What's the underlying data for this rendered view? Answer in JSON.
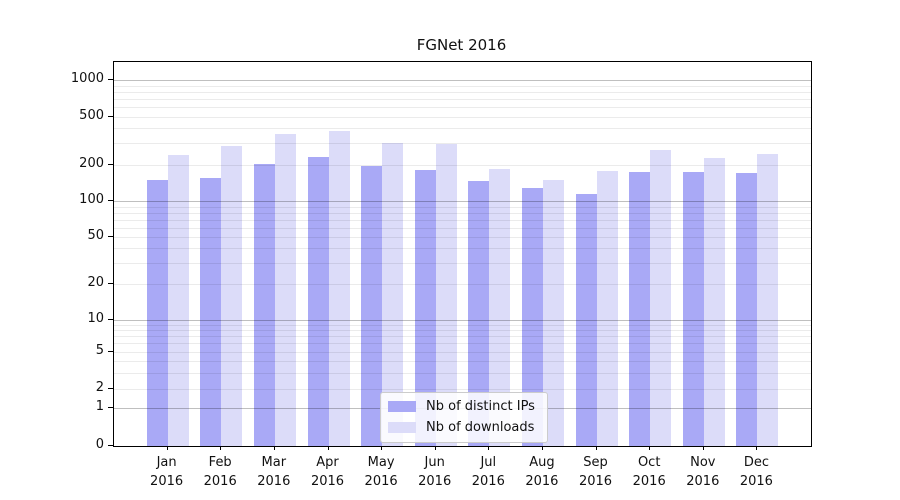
{
  "chart_data": {
    "type": "bar",
    "title": "FGNet 2016",
    "yscale": "symlog",
    "grid": "both",
    "ylim": [
      0,
      1400
    ],
    "y_tick_labels": [
      "1000",
      "500",
      "200",
      "100",
      "50",
      "20",
      "10",
      "5",
      "2",
      "1",
      "0"
    ],
    "y_tick_values": [
      1000,
      500,
      200,
      100,
      50,
      20,
      10,
      5,
      2,
      1,
      0
    ],
    "categories": [
      "Jan",
      "Feb",
      "Mar",
      "Apr",
      "May",
      "Jun",
      "Jul",
      "Aug",
      "Sep",
      "Oct",
      "Nov",
      "Dec"
    ],
    "category_year": "2016",
    "series": [
      {
        "name": "Nb of distinct IPs",
        "color": "#a9a9f6",
        "values": [
          150,
          155,
          205,
          230,
          195,
          180,
          146,
          130,
          115,
          175,
          175,
          170
        ]
      },
      {
        "name": "Nb of downloads",
        "color": "#dcdcf9",
        "values": [
          240,
          285,
          360,
          380,
          300,
          295,
          186,
          150,
          177,
          265,
          228,
          245
        ]
      }
    ],
    "legend_position": "lower-center"
  }
}
